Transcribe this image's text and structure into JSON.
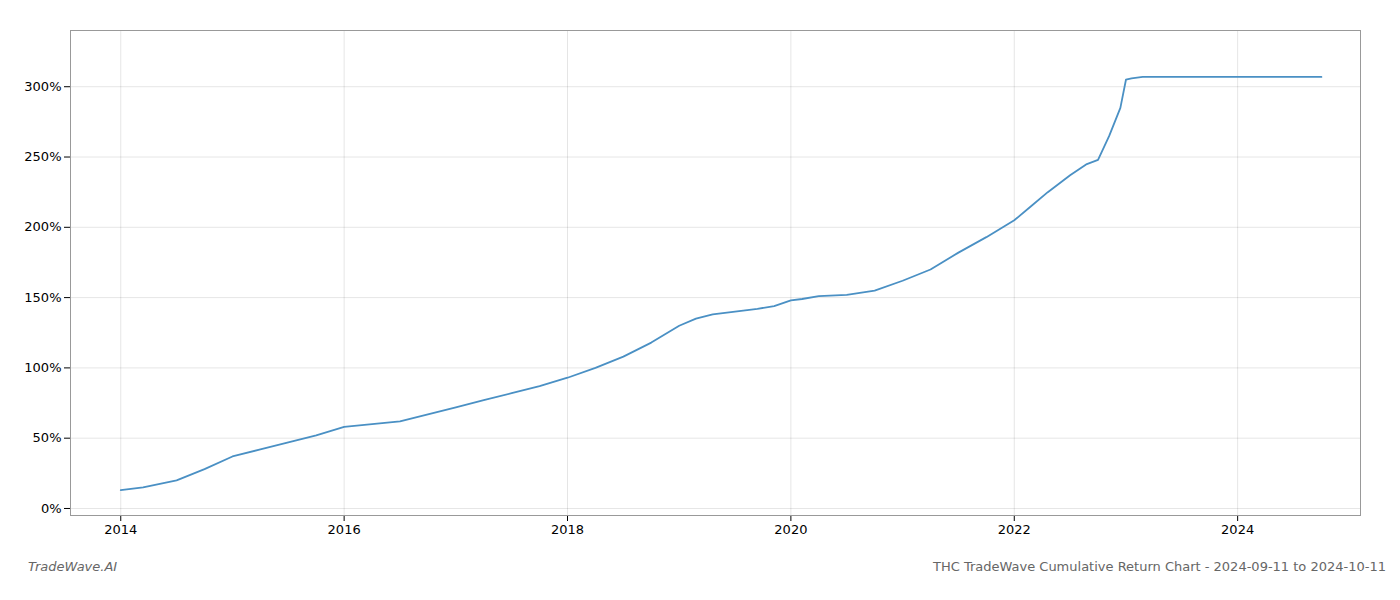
{
  "chart_data": {
    "type": "line",
    "title": "THC TradeWave Cumulative Return Chart - 2024-09-11 to 2024-10-11",
    "annotations": [
      "TradeWave.AI"
    ],
    "color": "#4a90c4",
    "x": [
      2014.0,
      2014.2,
      2014.5,
      2014.75,
      2015.0,
      2015.25,
      2015.5,
      2015.75,
      2016.0,
      2016.25,
      2016.5,
      2016.75,
      2017.0,
      2017.25,
      2017.5,
      2017.75,
      2018.0,
      2018.25,
      2018.5,
      2018.75,
      2019.0,
      2019.15,
      2019.3,
      2019.5,
      2019.7,
      2019.85,
      2020.0,
      2020.1,
      2020.25,
      2020.5,
      2020.75,
      2021.0,
      2021.25,
      2021.5,
      2021.75,
      2022.0,
      2022.15,
      2022.3,
      2022.5,
      2022.65,
      2022.75,
      2022.85,
      2022.95,
      2023.0,
      2023.05,
      2023.15,
      2023.3,
      2023.5,
      2023.75,
      2024.0,
      2024.25,
      2024.5,
      2024.75
    ],
    "values": [
      13,
      15,
      20,
      28,
      37,
      42,
      47,
      52,
      58,
      60,
      62,
      67,
      72,
      77,
      82,
      87,
      93,
      100,
      108,
      118,
      130,
      135,
      138,
      140,
      142,
      144,
      148,
      149,
      151,
      152,
      155,
      162,
      170,
      182,
      193,
      205,
      215,
      225,
      237,
      245,
      248,
      265,
      285,
      305,
      306,
      307,
      307,
      307,
      307,
      307,
      307,
      307,
      307
    ],
    "xlim": [
      2013.55,
      2025.1
    ],
    "ylim": [
      -5,
      340
    ],
    "xticks": [
      2014,
      2016,
      2018,
      2020,
      2022,
      2024
    ],
    "yticks": [
      {
        "value": 0,
        "label": "0%"
      },
      {
        "value": 50,
        "label": "50%"
      },
      {
        "value": 100,
        "label": "100%"
      },
      {
        "value": 150,
        "label": "150%"
      },
      {
        "value": 200,
        "label": "200%"
      },
      {
        "value": 250,
        "label": "250%"
      },
      {
        "value": 300,
        "label": "300%"
      }
    ],
    "grid": true
  }
}
